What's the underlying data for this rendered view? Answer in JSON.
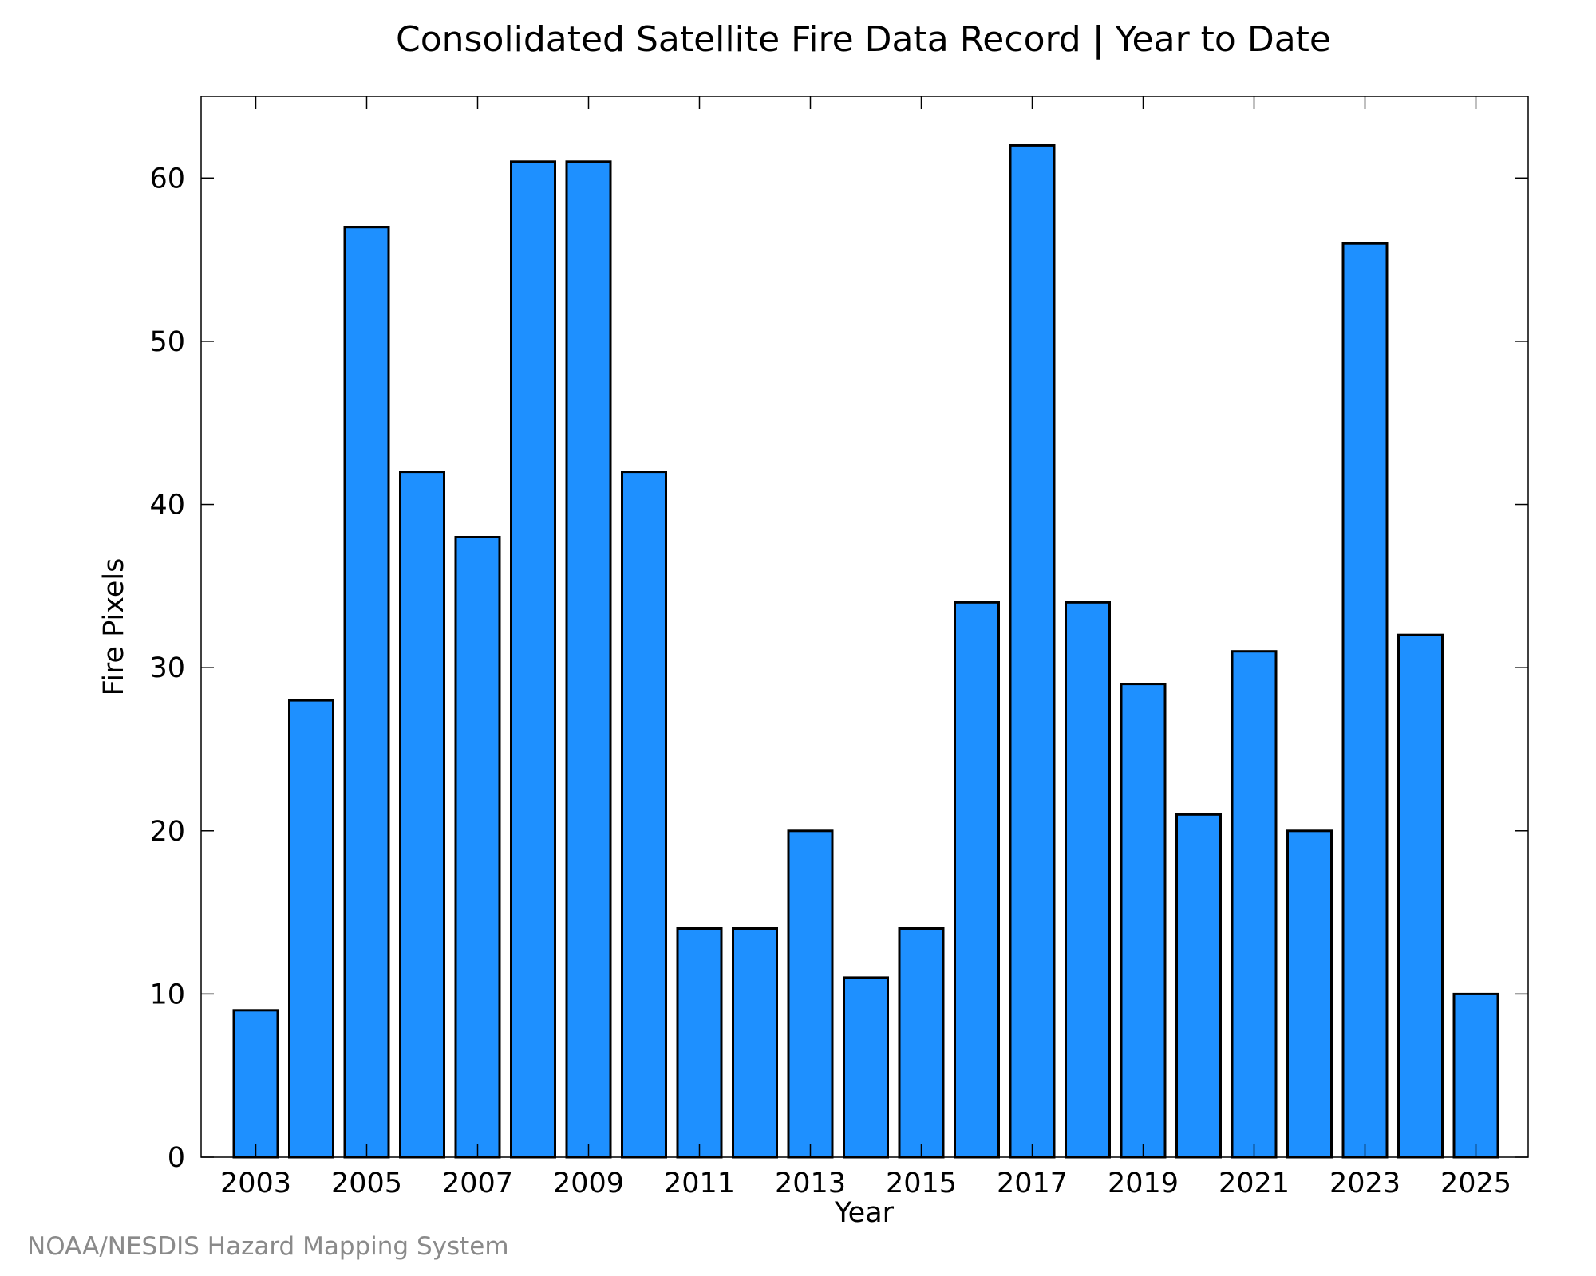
{
  "chart_data": {
    "type": "bar",
    "title": "Consolidated Satellite Fire Data Record | Year to Date",
    "xlabel": "Year",
    "ylabel": "Fire Pixels",
    "categories": [
      "2003",
      "2004",
      "2005",
      "2006",
      "2007",
      "2008",
      "2009",
      "2010",
      "2011",
      "2012",
      "2013",
      "2014",
      "2015",
      "2016",
      "2017",
      "2018",
      "2019",
      "2020",
      "2021",
      "2022",
      "2023",
      "2024",
      "2025"
    ],
    "values": [
      9,
      28,
      57,
      42,
      38,
      61,
      61,
      42,
      14,
      14,
      20,
      11,
      14,
      34,
      62,
      34,
      29,
      21,
      31,
      20,
      56,
      32,
      10
    ],
    "x_tick_labels": [
      "2003",
      "2005",
      "2007",
      "2009",
      "2011",
      "2013",
      "2015",
      "2017",
      "2019",
      "2021",
      "2023",
      "2025"
    ],
    "y_tick_labels": [
      "0",
      "10",
      "20",
      "30",
      "40",
      "50",
      "60"
    ],
    "ylim": [
      0,
      65
    ],
    "grid": false,
    "bar_color": "#1e90ff",
    "edge_color": "#000000"
  },
  "credit": "NOAA/NESDIS Hazard Mapping System"
}
